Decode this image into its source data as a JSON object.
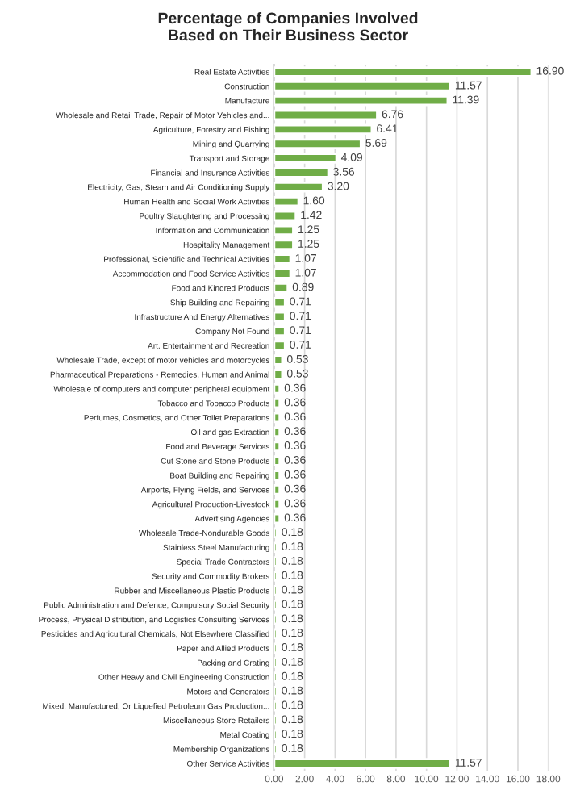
{
  "chart_data": {
    "type": "bar",
    "orientation": "horizontal",
    "title": "Percentage of Companies Involved\nBased on Their Business Sector",
    "categories": [
      "Real Estate Activities",
      "Construction",
      "Manufacture",
      "Wholesale and Retail Trade, Repair of Motor Vehicles and...",
      "Agriculture, Forestry and Fishing",
      "Mining and Quarrying",
      "Transport and Storage",
      "Financial and Insurance Activities",
      "Electricity, Gas, Steam and Air Conditioning Supply",
      "Human Health and Social Work Activities",
      "Poultry Slaughtering and Processing",
      "Information and Communication",
      "Hospitality Management",
      "Professional, Scientific and Technical Activities",
      "Accommodation and Food Service Activities",
      "Food and Kindred Products",
      "Ship Building and Repairing",
      "Infrastructure And Energy Alternatives",
      "Company Not Found",
      "Art, Entertainment and Recreation",
      "Wholesale Trade, except of motor vehicles and motorcycles",
      "Pharmaceutical Preparations - Remedies, Human and Animal",
      "Wholesale of computers and computer peripheral equipment",
      "Tobacco and Tobacco Products",
      "Perfumes, Cosmetics, and Other Toilet Preparations",
      "Oil and gas Extraction",
      "Food and Beverage Services",
      "Cut Stone and Stone Products",
      "Boat Building and Repairing",
      "Airports, Flying Fields, and Services",
      "Agricultural Production-Livestock",
      "Advertising Agencies",
      "Wholesale Trade-Nondurable Goods",
      "Stainless Steel Manufacturing",
      "Special Trade Contractors",
      "Security and Commodity Brokers",
      "Rubber and Miscellaneous Plastic Products",
      "Public Administration and Defence; Compulsory Social Security",
      "Process, Physical Distribution, and Logistics Consulting Services",
      "Pesticides and Agricultural Chemicals, Not Elsewhere Classified",
      "Paper and Allied Products",
      "Packing and Crating",
      "Other Heavy and Civil Engineering Construction",
      "Motors and Generators",
      "Mixed, Manufactured, Or Liquefied Petroleum Gas Production...",
      "Miscellaneous Store Retailers",
      "Metal Coating",
      "Membership Organizations",
      "Other Service Activities"
    ],
    "values": [
      16.9,
      11.57,
      11.39,
      6.76,
      6.41,
      5.69,
      4.09,
      3.56,
      3.2,
      1.6,
      1.42,
      1.25,
      1.25,
      1.07,
      1.07,
      0.89,
      0.71,
      0.71,
      0.71,
      0.71,
      0.53,
      0.53,
      0.36,
      0.36,
      0.36,
      0.36,
      0.36,
      0.36,
      0.36,
      0.36,
      0.36,
      0.36,
      0.18,
      0.18,
      0.18,
      0.18,
      0.18,
      0.18,
      0.18,
      0.18,
      0.18,
      0.18,
      0.18,
      0.18,
      0.18,
      0.18,
      0.18,
      0.18,
      11.57
    ],
    "value_labels": [
      "16.90",
      "11.57",
      "11.39",
      "6.76",
      "6.41",
      "5.69",
      "4.09",
      "3.56",
      "3.20",
      "1.60",
      "1.42",
      "1.25",
      "1.25",
      "1.07",
      "1.07",
      "0.89",
      "0.71",
      "0.71",
      "0.71",
      "0.71",
      "0.53",
      "0.53",
      "0.36",
      "0.36",
      "0.36",
      "0.36",
      "0.36",
      "0.36",
      "0.36",
      "0.36",
      "0.36",
      "0.36",
      "0.18",
      "0.18",
      "0.18",
      "0.18",
      "0.18",
      "0.18",
      "0.18",
      "0.18",
      "0.18",
      "0.18",
      "0.18",
      "0.18",
      "0.18",
      "0.18",
      "0.18",
      "0.18",
      "11.57"
    ],
    "color": "#70ad47",
    "xlim": [
      0,
      18
    ],
    "xticks": [
      {
        "value": 0,
        "label": "0.00"
      },
      {
        "value": 2,
        "label": "2.00"
      },
      {
        "value": 4,
        "label": "4.00"
      },
      {
        "value": 6,
        "label": "6.00"
      },
      {
        "value": 8,
        "label": "8.00"
      },
      {
        "value": 10,
        "label": "10.00"
      },
      {
        "value": 12,
        "label": "12.00"
      },
      {
        "value": 14,
        "label": "14.00"
      },
      {
        "value": 16,
        "label": "16.00"
      },
      {
        "value": 18,
        "label": "18.00"
      }
    ],
    "grid": "x"
  }
}
